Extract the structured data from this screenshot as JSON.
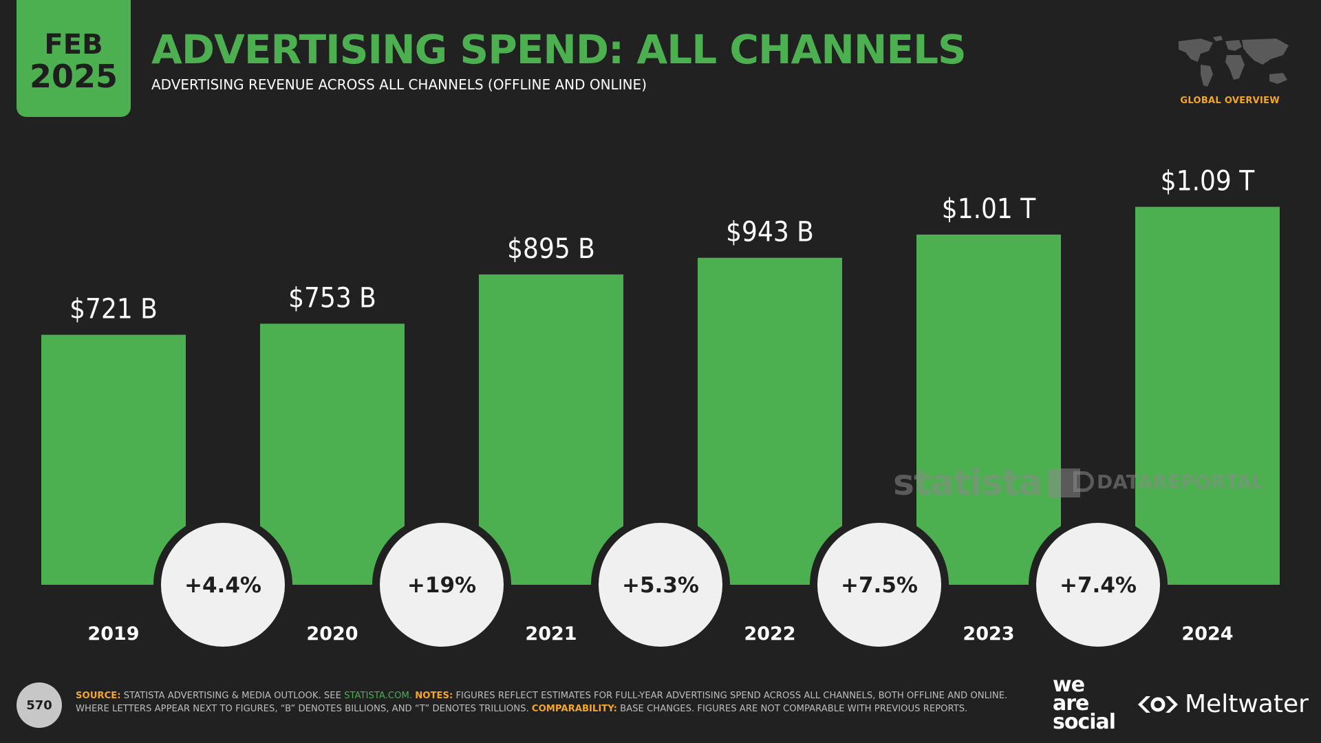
{
  "header": {
    "month": "FEB",
    "year": "2025",
    "title": "ADVERTISING SPEND: ALL CHANNELS",
    "subtitle": "ADVERTISING REVENUE ACROSS ALL CHANNELS (OFFLINE AND ONLINE)",
    "region_label": "GLOBAL OVERVIEW"
  },
  "chart_data": {
    "type": "bar",
    "categories": [
      "2019",
      "2020",
      "2021",
      "2022",
      "2023",
      "2024"
    ],
    "values": [
      721,
      753,
      895,
      943,
      1010,
      1090
    ],
    "value_labels": [
      "$721 B",
      "$753 B",
      "$895 B",
      "$943 B",
      "$1.01 T",
      "$1.09 T"
    ],
    "growth_labels": [
      "+4.4%",
      "+19%",
      "+5.3%",
      "+7.5%",
      "+7.4%"
    ],
    "ylim": [
      0,
      1250
    ],
    "xlabel": "",
    "ylabel": "",
    "grid": false,
    "bar_color": "#4caf50"
  },
  "watermarks": {
    "statista": "statista",
    "datareportal": "DATAREPORTAL"
  },
  "footer": {
    "page_number": "570",
    "source_key": "SOURCE:",
    "source_text": "STATISTA ADVERTISING & MEDIA OUTLOOK. SEE",
    "source_link": "STATISTA.COM.",
    "notes_key": "NOTES:",
    "notes_text": "FIGURES REFLECT ESTIMATES FOR FULL-YEAR ADVERTISING SPEND ACROSS ALL CHANNELS, BOTH OFFLINE AND ONLINE. WHERE LETTERS APPEAR NEXT TO FIGURES, “B” DENOTES BILLIONS, AND “T” DENOTES TRILLIONS.",
    "comparability_key": "COMPARABILITY:",
    "comparability_text": "BASE CHANGES. FIGURES ARE NOT COMPARABLE WITH PREVIOUS REPORTS.",
    "logo_we": "we",
    "logo_are": "are",
    "logo_social": "social",
    "logo_meltwater": "Meltwater"
  },
  "colors": {
    "accent": "#4caf50",
    "highlight": "#f5a623",
    "background": "#212121",
    "bubble": "#f0f0f0"
  }
}
